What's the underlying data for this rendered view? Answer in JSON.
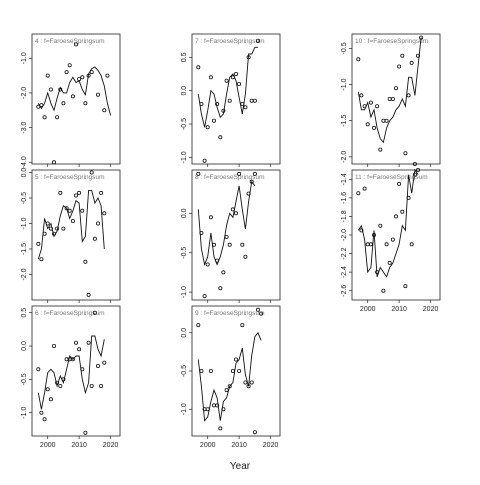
{
  "chart_data": [
    {
      "type": "line",
      "title": "4 : f=FaroeseSpringsum",
      "years": [
        1997,
        1998,
        1999,
        2000,
        2001,
        2002,
        2003,
        2004,
        2005,
        2006,
        2007,
        2008,
        2009,
        2010,
        2011,
        2012,
        2013,
        2014,
        2015,
        2016,
        2017,
        2018,
        2019,
        2020,
        2021
      ],
      "points": [
        -2.4,
        -2.35,
        -2.7,
        -1.5,
        -1.9,
        -4.0,
        -2.7,
        -1.9,
        -2.3,
        -1.4,
        -1.2,
        -2.1,
        -0.6,
        -1.6,
        -1.55,
        -2.3,
        -1.5,
        -1.4,
        null,
        -2.05,
        null,
        -2.5,
        -1.5,
        null,
        null
      ],
      "fitted": [
        -2.3,
        -2.45,
        -2.3,
        -2.0,
        -2.3,
        -2.5,
        -2.15,
        -1.85,
        -2.0,
        -2.0,
        -1.7,
        -1.55,
        -1.7,
        -1.65,
        -1.9,
        -2.05,
        -1.45,
        -1.3,
        -1.25,
        -1.35,
        -1.5,
        -1.8,
        -2.3,
        -2.65,
        null
      ],
      "ylim": [
        -4.05,
        -0.3
      ],
      "yticks": [
        -4.0,
        -3.0,
        -2.0,
        -1.0
      ],
      "ytick_labels": [
        "-4.0",
        "-3.0",
        "-2.0",
        "-1.0"
      ]
    },
    {
      "type": "line",
      "title": "5 : f=FaroeseSpringsum",
      "years": [
        1997,
        1998,
        1999,
        2000,
        2001,
        2002,
        2003,
        2004,
        2005,
        2006,
        2007,
        2008,
        2009,
        2010,
        2011,
        2012,
        2013,
        2014,
        2015,
        2016,
        2017,
        2018,
        2019,
        2020,
        2021
      ],
      "points": [
        -1.4,
        -1.7,
        -1.2,
        -1.0,
        -1.1,
        -1.2,
        -1.1,
        -0.4,
        -1.1,
        -0.7,
        -0.75,
        -0.95,
        -0.45,
        -0.4,
        -0.75,
        -1.75,
        -2.4,
        0.0,
        -1.3,
        -1.0,
        -0.4,
        -0.8,
        null,
        null,
        null
      ],
      "fitted": [
        -1.7,
        -1.5,
        -0.9,
        -1.1,
        -1.0,
        -1.25,
        -1.15,
        -0.85,
        -0.65,
        -0.7,
        -0.9,
        -0.75,
        -0.55,
        -0.6,
        -1.35,
        -1.25,
        -0.35,
        -0.35,
        -0.6,
        -0.5,
        -0.65,
        -1.5,
        null,
        null,
        null
      ],
      "ylim": [
        -2.5,
        0.05
      ],
      "yticks": [
        -2.0,
        -1.5,
        -1.0,
        -0.5,
        0.0
      ],
      "ytick_labels": [
        "-2.0",
        "-1.5",
        "-1.0",
        "-0.5",
        "0.0"
      ]
    },
    {
      "type": "line",
      "title": "6 : f=FaroeseSpringsum",
      "years": [
        1997,
        1998,
        1999,
        2000,
        2001,
        2002,
        2003,
        2004,
        2005,
        2006,
        2007,
        2008,
        2009,
        2010,
        2011,
        2012,
        2013,
        2014,
        2015,
        2016,
        2017,
        2018,
        2019,
        2020,
        2021
      ],
      "points": [
        -0.35,
        -1.0,
        -1.1,
        -0.65,
        -0.8,
        0.0,
        -0.55,
        -0.6,
        -0.5,
        -0.2,
        -0.2,
        -0.2,
        0.05,
        -0.05,
        -0.35,
        -1.3,
        0.05,
        -0.6,
        0.5,
        -0.3,
        -0.6,
        -0.25,
        null,
        null,
        null
      ],
      "fitted": [
        -0.7,
        -0.95,
        -0.7,
        -0.4,
        -0.35,
        -0.4,
        -0.6,
        -0.45,
        -0.55,
        -0.35,
        -0.15,
        -0.2,
        -0.15,
        -0.15,
        -0.5,
        -0.7,
        -0.55,
        0.15,
        0.15,
        -0.05,
        -0.15,
        0.1,
        null,
        null,
        null
      ],
      "ylim": [
        -1.35,
        0.6
      ],
      "yticks": [
        -1.0,
        -0.5,
        0.0,
        0.5
      ],
      "ytick_labels": [
        "-1.0",
        "-0.5",
        "0.0",
        "0.5"
      ]
    },
    {
      "type": "line",
      "title": "7 : f=FaroeseSpringsum",
      "years": [
        1997,
        1998,
        1999,
        2000,
        2001,
        2002,
        2003,
        2004,
        2005,
        2006,
        2007,
        2008,
        2009,
        2010,
        2011,
        2012,
        2013,
        2014,
        2015,
        2016,
        2017,
        2018,
        2019,
        2020,
        2021
      ],
      "points": [
        0.35,
        -0.2,
        -1.05,
        -0.55,
        0.2,
        -0.45,
        -0.2,
        -0.7,
        -0.3,
        0.15,
        -0.15,
        0.2,
        0.25,
        0.1,
        -0.2,
        -0.25,
        0.5,
        -0.15,
        -0.15,
        0.75,
        null,
        null,
        null,
        null,
        null
      ],
      "fitted": [
        -0.05,
        -0.35,
        -0.55,
        -0.3,
        0.0,
        -0.05,
        -0.25,
        -0.4,
        -0.35,
        -0.05,
        0.2,
        0.25,
        0.15,
        -0.1,
        -0.35,
        -0.05,
        0.55,
        0.55,
        0.65,
        0.65,
        null,
        null,
        null,
        null,
        null
      ],
      "ylim": [
        -1.1,
        0.85
      ],
      "yticks": [
        -1.0,
        -0.5,
        0.0,
        0.5
      ],
      "ytick_labels": [
        "-1.0",
        "-0.5",
        "0.0",
        "0.5"
      ]
    },
    {
      "type": "line",
      "title": "8 : f=FaroeseSpringsum",
      "years": [
        1997,
        1998,
        1999,
        2000,
        2001,
        2002,
        2003,
        2004,
        2005,
        2006,
        2007,
        2008,
        2009,
        2010,
        2011,
        2012,
        2013,
        2014,
        2015,
        2016,
        2017,
        2018,
        2019,
        2020,
        2021
      ],
      "points": [
        0.5,
        -0.25,
        -1.05,
        -0.65,
        -0.05,
        -0.4,
        -0.6,
        -0.95,
        -0.75,
        -0.3,
        -0.4,
        0.05,
        0.0,
        0.5,
        -0.4,
        -0.55,
        0.25,
        0.4,
        0.5,
        null,
        null,
        null,
        null,
        null,
        null
      ],
      "fitted": [
        0.05,
        -0.45,
        -0.65,
        -0.55,
        -0.25,
        -0.55,
        -0.65,
        -0.55,
        -0.4,
        -0.15,
        0.0,
        -0.05,
        0.15,
        0.35,
        0.05,
        -0.2,
        0.15,
        0.4,
        0.35,
        null,
        null,
        null,
        null,
        null,
        null
      ],
      "ylim": [
        -1.1,
        0.55
      ],
      "yticks": [
        -1.0,
        -0.5,
        0.0
      ],
      "ytick_labels": [
        "-1.0",
        "-0.5",
        "0.0"
      ]
    },
    {
      "type": "line",
      "title": "9 : f=FaroeseSpringsum",
      "years": [
        1997,
        1998,
        1999,
        2000,
        2001,
        2002,
        2003,
        2004,
        2005,
        2006,
        2007,
        2008,
        2009,
        2010,
        2011,
        2012,
        2013,
        2014,
        2015,
        2016,
        2017,
        2018,
        2019,
        2020,
        2021
      ],
      "points": [
        0.1,
        -0.5,
        -1.0,
        -1.0,
        -0.5,
        -0.95,
        -0.95,
        -1.25,
        -1.0,
        -0.75,
        -0.7,
        -0.5,
        -0.35,
        -0.5,
        0.1,
        -0.65,
        -0.7,
        -0.65,
        -1.3,
        0.3,
        0.25,
        null,
        null,
        null,
        null
      ],
      "fitted": [
        -0.35,
        -0.7,
        -1.15,
        -1.1,
        -0.9,
        -0.75,
        -0.85,
        -1.15,
        -0.9,
        -0.85,
        -0.7,
        -0.65,
        -0.4,
        -0.35,
        -0.2,
        -0.55,
        -0.7,
        -0.3,
        -0.05,
        0.0,
        -0.1,
        null,
        null,
        null,
        null
      ],
      "ylim": [
        -1.35,
        0.35
      ],
      "yticks": [
        -1.0,
        -0.5,
        0.0
      ],
      "ytick_labels": [
        "-1.0",
        "-0.5",
        "0.0"
      ]
    },
    {
      "type": "line",
      "title": "10 : f=FaroeseSpringsum",
      "years": [
        1997,
        1998,
        1999,
        2000,
        2001,
        2002,
        2003,
        2004,
        2005,
        2006,
        2007,
        2008,
        2009,
        2010,
        2011,
        2012,
        2013,
        2014,
        2015,
        2016,
        2017,
        2018,
        2019,
        2020,
        2021
      ],
      "points": [
        -0.65,
        -1.15,
        -1.3,
        -1.55,
        -1.25,
        -1.6,
        -1.3,
        -1.9,
        -1.5,
        -1.5,
        -1.2,
        -1.2,
        -1.05,
        -0.75,
        -0.6,
        -1.95,
        -1.15,
        -0.7,
        -2.1,
        -0.6,
        -0.35,
        null,
        null,
        null,
        null
      ],
      "fitted": [
        -1.1,
        -1.35,
        -1.35,
        -1.25,
        -1.45,
        -1.35,
        -1.6,
        -1.75,
        -1.8,
        -1.6,
        -1.5,
        -1.45,
        -1.35,
        -1.3,
        -1.2,
        -1.3,
        -0.9,
        -0.9,
        -1.15,
        -0.75,
        -0.35,
        null,
        null,
        null,
        null
      ],
      "ylim": [
        -2.1,
        -0.3
      ],
      "yticks": [
        -2.0,
        -1.5,
        -1.0,
        -0.5
      ],
      "ytick_labels": [
        "-2.0",
        "-1.5",
        "-1.0",
        "-0.5"
      ]
    },
    {
      "type": "line",
      "title": "11 : f=FaroeseSpringsum",
      "years": [
        1997,
        1998,
        1999,
        2000,
        2001,
        2002,
        2003,
        2004,
        2005,
        2006,
        2007,
        2008,
        2009,
        2010,
        2011,
        2012,
        2013,
        2014,
        2015,
        2016,
        2017,
        2018,
        2019,
        2020,
        2021
      ],
      "points": [
        -1.55,
        -1.95,
        -1.5,
        -2.1,
        -2.1,
        -2.0,
        -2.4,
        -1.9,
        -2.6,
        -2.1,
        -2.3,
        -2.05,
        -1.8,
        -1.45,
        -1.75,
        -2.55,
        -1.6,
        -2.1,
        -1.35,
        -1.3,
        null,
        null,
        null,
        null,
        null
      ],
      "fitted": [
        -1.95,
        -1.9,
        -2.05,
        -2.4,
        -2.35,
        -1.95,
        -2.45,
        -2.35,
        -2.4,
        -2.45,
        -2.35,
        -2.3,
        -2.2,
        -2.1,
        -1.9,
        -1.95,
        -1.35,
        -1.55,
        -1.3,
        -1.35,
        null,
        null,
        null,
        null,
        null
      ],
      "ylim": [
        -2.7,
        -1.3
      ],
      "yticks": [
        -2.6,
        -2.4,
        -2.2,
        -2.0,
        -1.8,
        -1.6,
        -1.4
      ],
      "ytick_labels": [
        "-2.6",
        "-2.4",
        "-2.2",
        "-2.0",
        "-1.8",
        "-1.6",
        "-1.4"
      ]
    }
  ],
  "x_axis": {
    "label": "Year",
    "ticks": [
      "2000",
      "2010",
      "2020"
    ]
  }
}
